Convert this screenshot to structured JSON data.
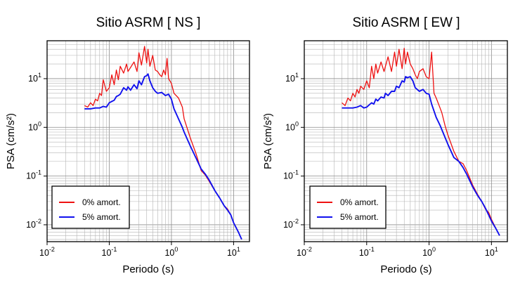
{
  "chart_data": [
    {
      "type": "line",
      "title": "Sitio ASRM [ NS ]",
      "xlabel": "Periodo (s)",
      "ylabel": "PSA (cm/s²)",
      "xscale": "log",
      "yscale": "log",
      "xlim": [
        0.01,
        18
      ],
      "ylim": [
        0.0045,
        60
      ],
      "grid": true,
      "legend_position": "bottom-left",
      "x_ticks": [
        {
          "value": 0.01,
          "base": "10",
          "exp": "-2"
        },
        {
          "value": 0.1,
          "base": "10",
          "exp": "-1"
        },
        {
          "value": 1,
          "base": "10",
          "exp": "0"
        },
        {
          "value": 10,
          "base": "10",
          "exp": "1"
        }
      ],
      "y_ticks": [
        {
          "value": 0.01,
          "base": "10",
          "exp": "-2"
        },
        {
          "value": 0.1,
          "base": "10",
          "exp": "-1"
        },
        {
          "value": 1,
          "base": "10",
          "exp": "0"
        },
        {
          "value": 10,
          "base": "10",
          "exp": "1"
        }
      ],
      "series": [
        {
          "name": "0% amort.",
          "color": "#ee1111",
          "x": [
            0.04,
            0.045,
            0.05,
            0.055,
            0.06,
            0.065,
            0.07,
            0.075,
            0.08,
            0.09,
            0.1,
            0.11,
            0.12,
            0.13,
            0.14,
            0.15,
            0.17,
            0.19,
            0.2,
            0.22,
            0.25,
            0.28,
            0.3,
            0.33,
            0.37,
            0.4,
            0.42,
            0.45,
            0.5,
            0.55,
            0.6,
            0.65,
            0.7,
            0.75,
            0.8,
            0.85,
            0.9,
            1.0,
            1.1,
            1.3,
            1.5,
            1.6,
            2.0,
            2.5,
            3.0,
            3.5,
            4.0,
            5.0,
            6.0,
            7.0,
            8.0,
            9.0,
            10.0,
            12.0,
            13.5
          ],
          "values": [
            2.8,
            2.6,
            3.2,
            2.8,
            3.8,
            3.5,
            5.0,
            4.5,
            9.5,
            5.5,
            6.5,
            12.0,
            7.5,
            15.0,
            9.5,
            18.0,
            13.0,
            20.0,
            14.0,
            17.0,
            22.0,
            14.0,
            34.0,
            19.0,
            46.0,
            21.0,
            40.0,
            18.0,
            30.0,
            15.0,
            14.0,
            12.0,
            11.0,
            15.0,
            12.0,
            26.0,
            10.0,
            8.0,
            5.0,
            4.0,
            2.6,
            1.5,
            0.62,
            0.28,
            0.13,
            0.105,
            0.08,
            0.05,
            0.035,
            0.025,
            0.021,
            0.016,
            0.011,
            0.007,
            0.005
          ]
        },
        {
          "name": "5% amort.",
          "color": "#1111ee",
          "x": [
            0.04,
            0.05,
            0.06,
            0.07,
            0.08,
            0.09,
            0.1,
            0.11,
            0.12,
            0.13,
            0.14,
            0.15,
            0.17,
            0.19,
            0.2,
            0.22,
            0.25,
            0.28,
            0.3,
            0.33,
            0.37,
            0.4,
            0.42,
            0.45,
            0.5,
            0.55,
            0.6,
            0.7,
            0.8,
            0.9,
            1.0,
            1.1,
            1.3,
            1.5,
            1.6,
            2.0,
            2.5,
            3.0,
            3.5,
            4.0,
            5.0,
            6.0,
            7.0,
            8.0,
            9.0,
            10.0,
            12.0,
            13.5
          ],
          "values": [
            2.4,
            2.4,
            2.5,
            2.5,
            2.7,
            2.6,
            3.2,
            3.4,
            3.6,
            4.3,
            4.5,
            4.8,
            6.5,
            5.8,
            6.8,
            5.8,
            7.5,
            6.2,
            9.0,
            7.5,
            11.0,
            11.5,
            12.5,
            9.0,
            6.5,
            5.5,
            5.0,
            5.2,
            4.5,
            4.8,
            3.8,
            2.4,
            1.5,
            1.0,
            0.8,
            0.42,
            0.23,
            0.14,
            0.11,
            0.085,
            0.05,
            0.035,
            0.025,
            0.02,
            0.016,
            0.011,
            0.007,
            0.005
          ]
        }
      ]
    },
    {
      "type": "line",
      "title": "Sitio ASRM [ EW ]",
      "xlabel": "Periodo (s)",
      "ylabel": "PSA (cm/s²)",
      "xscale": "log",
      "yscale": "log",
      "xlim": [
        0.01,
        18
      ],
      "ylim": [
        0.0045,
        60
      ],
      "grid": true,
      "legend_position": "bottom-left",
      "x_ticks": [
        {
          "value": 0.01,
          "base": "10",
          "exp": "-2"
        },
        {
          "value": 0.1,
          "base": "10",
          "exp": "-1"
        },
        {
          "value": 1,
          "base": "10",
          "exp": "0"
        },
        {
          "value": 10,
          "base": "10",
          "exp": "1"
        }
      ],
      "y_ticks": [
        {
          "value": 0.01,
          "base": "10",
          "exp": "-2"
        },
        {
          "value": 0.1,
          "base": "10",
          "exp": "-1"
        },
        {
          "value": 1,
          "base": "10",
          "exp": "0"
        },
        {
          "value": 10,
          "base": "10",
          "exp": "1"
        }
      ],
      "series": [
        {
          "name": "0% amort.",
          "color": "#ee1111",
          "x": [
            0.04,
            0.045,
            0.05,
            0.055,
            0.06,
            0.065,
            0.07,
            0.075,
            0.08,
            0.09,
            0.1,
            0.11,
            0.12,
            0.13,
            0.14,
            0.15,
            0.17,
            0.19,
            0.2,
            0.22,
            0.25,
            0.28,
            0.3,
            0.33,
            0.37,
            0.4,
            0.42,
            0.45,
            0.5,
            0.55,
            0.6,
            0.65,
            0.7,
            0.8,
            0.9,
            1.0,
            1.1,
            1.2,
            1.3,
            1.5,
            1.6,
            1.8,
            2.0,
            2.5,
            3.0,
            3.5,
            4.0,
            5.0,
            6.0,
            7.0,
            8.0,
            9.0,
            10.0,
            12.0,
            13.5
          ],
          "values": [
            3.2,
            2.8,
            4.0,
            3.5,
            5.0,
            4.2,
            6.0,
            5.0,
            7.0,
            6.0,
            9.0,
            6.5,
            18.0,
            10.0,
            20.0,
            13.0,
            22.0,
            14.0,
            18.0,
            28.0,
            14.0,
            35.0,
            18.0,
            40.0,
            16.0,
            42.0,
            20.0,
            35.0,
            20.0,
            16.0,
            12.0,
            10.0,
            14.0,
            16.0,
            11.0,
            10.0,
            35.0,
            5.0,
            4.0,
            2.5,
            2.0,
            1.1,
            0.7,
            0.32,
            0.2,
            0.18,
            0.13,
            0.065,
            0.042,
            0.03,
            0.021,
            0.018,
            0.013,
            0.008,
            0.006
          ]
        },
        {
          "name": "5% amort.",
          "color": "#1111ee",
          "x": [
            0.04,
            0.05,
            0.06,
            0.07,
            0.08,
            0.09,
            0.1,
            0.11,
            0.12,
            0.13,
            0.14,
            0.15,
            0.17,
            0.19,
            0.2,
            0.22,
            0.25,
            0.28,
            0.3,
            0.33,
            0.37,
            0.4,
            0.42,
            0.45,
            0.5,
            0.55,
            0.6,
            0.7,
            0.8,
            0.9,
            1.0,
            1.1,
            1.3,
            1.5,
            1.6,
            2.0,
            2.5,
            3.0,
            3.5,
            4.0,
            5.0,
            6.0,
            7.0,
            8.0,
            9.0,
            10.0,
            12.0,
            13.5
          ],
          "values": [
            2.5,
            2.5,
            2.5,
            2.6,
            2.8,
            2.5,
            2.6,
            2.9,
            3.2,
            3.0,
            3.8,
            3.5,
            4.2,
            4.0,
            5.0,
            4.5,
            5.5,
            5.5,
            7.0,
            6.5,
            9.0,
            8.5,
            11.0,
            10.5,
            11.0,
            9.0,
            6.5,
            5.5,
            6.0,
            5.0,
            4.8,
            3.0,
            1.6,
            1.1,
            0.9,
            0.45,
            0.24,
            0.2,
            0.15,
            0.11,
            0.06,
            0.04,
            0.03,
            0.022,
            0.016,
            0.012,
            0.008,
            0.006
          ]
        }
      ]
    }
  ]
}
